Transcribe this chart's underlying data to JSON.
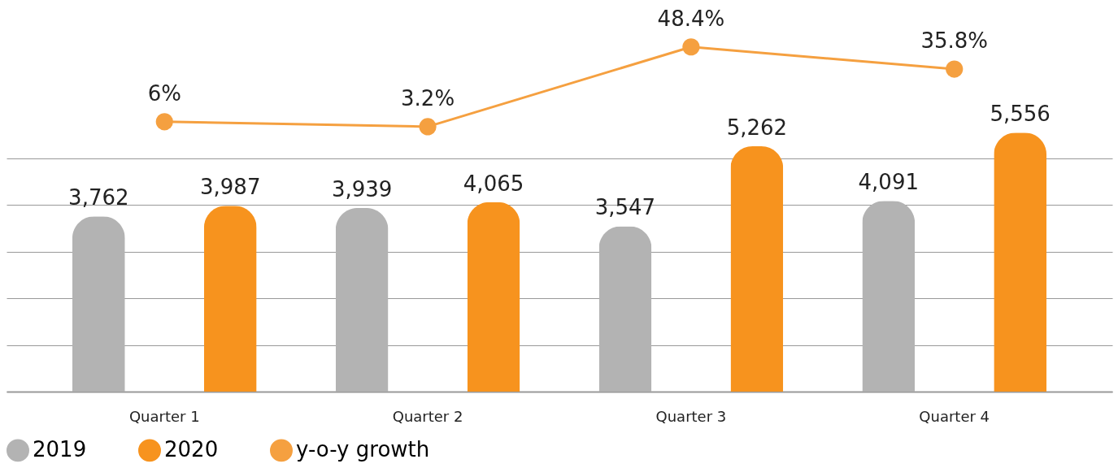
{
  "chart_data": {
    "type": "bar",
    "categories": [
      "Quarter 1",
      "Quarter 2",
      "Quarter 3",
      "Quarter 4"
    ],
    "series": [
      {
        "name": "2019",
        "color": "#b3b3b3",
        "values": [
          3762,
          3939,
          3547,
          4091
        ],
        "value_labels": [
          "3,762",
          "3,939",
          "3,547",
          "4,091"
        ]
      },
      {
        "name": "2020",
        "color": "#f7931e",
        "values": [
          3987,
          4065,
          5262,
          5556
        ],
        "value_labels": [
          "3,987",
          "4,065",
          "5,262",
          "5,556"
        ]
      },
      {
        "name": "y-o-y growth",
        "type": "line",
        "axis": "y2",
        "color": "#f5a040",
        "values": [
          6,
          3.2,
          48.4,
          35.8
        ],
        "value_labels": [
          "6%",
          "3.2%",
          "48.4%",
          "35.8%"
        ]
      }
    ],
    "ylim": [
      0,
      8400
    ],
    "yticks": [
      {
        "value": 0,
        "label": null
      },
      {
        "value": 1000,
        "label": null
      },
      {
        "value": 2000,
        "label": null
      },
      {
        "value": 3000,
        "label": null
      },
      {
        "value": 4000,
        "label": null
      },
      {
        "value": 5000,
        "label": null
      }
    ],
    "y2lim": [
      -147,
      75
    ],
    "grid": "y",
    "legend": "bottom",
    "marker": "circle",
    "tick_labels": "x"
  }
}
